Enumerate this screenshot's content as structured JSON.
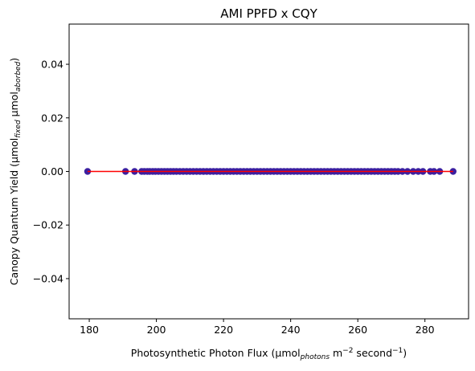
{
  "chart_data": {
    "type": "scatter",
    "title": "AMI PPFD x CQY",
    "xlabel": {
      "prefix": "Photosynthetic Photon Flux (µmol",
      "sub1": "photons",
      "mid": " m",
      "sup1": "−2",
      "mid2": " second",
      "sup2": "−1",
      "suffix": ")"
    },
    "ylabel": {
      "prefix": "Canopy Quantum Yield (µmol",
      "sub1": "fixed",
      "mid": " µmol",
      "sub2": "aborbed",
      "suffix": ")"
    },
    "xlim": [
      174,
      293
    ],
    "ylim": [
      -0.055,
      0.055
    ],
    "xticks": [
      180,
      200,
      220,
      240,
      260,
      280
    ],
    "yticks": [
      0.04,
      0.02,
      0.0,
      -0.02,
      -0.04
    ],
    "ytick_labels": [
      "0.04",
      "0.02",
      "0.00",
      "−0.02",
      "−0.04"
    ],
    "grid": false,
    "series": [
      {
        "marker_color": "#3b1fa0",
        "x": [
          179.5,
          190.8,
          193.5,
          195.6,
          196.4,
          197.3,
          198.0,
          198.9,
          199.7,
          200.6,
          201.5,
          202.4,
          203.3,
          204.2,
          205.1,
          206.0,
          207.0,
          208.0,
          209.0,
          210.0,
          211.0,
          212.0,
          213.0,
          214.0,
          215.0,
          216.0,
          217.0,
          218.0,
          219.0,
          220.0,
          221.0,
          222.0,
          223.0,
          224.0,
          225.0,
          226.0,
          227.0,
          228.0,
          229.0,
          230.0,
          231.0,
          232.0,
          233.0,
          234.0,
          235.0,
          236.0,
          237.0,
          238.0,
          239.0,
          240.0,
          241.0,
          242.0,
          243.0,
          244.0,
          245.0,
          246.0,
          247.0,
          248.0,
          249.0,
          250.0,
          251.0,
          252.0,
          253.0,
          254.0,
          255.0,
          256.0,
          257.0,
          258.0,
          259.0,
          260.0,
          261.0,
          262.0,
          263.0,
          264.0,
          265.0,
          266.0,
          267.0,
          268.0,
          269.0,
          270.0,
          271.0,
          272.0,
          273.3,
          274.8,
          276.5,
          278.0,
          279.4,
          281.6,
          282.7,
          284.4,
          288.4
        ],
        "y": [
          0,
          0,
          0,
          0,
          0,
          0,
          0,
          0,
          0,
          0,
          0,
          0,
          0,
          0,
          0,
          0,
          0,
          0,
          0,
          0,
          0,
          0,
          0,
          0,
          0,
          0,
          0,
          0,
          0,
          0,
          0,
          0,
          0,
          0,
          0,
          0,
          0,
          0,
          0,
          0,
          0,
          0,
          0,
          0,
          0,
          0,
          0,
          0,
          0,
          0,
          0,
          0,
          0,
          0,
          0,
          0,
          0,
          0,
          0,
          0,
          0,
          0,
          0,
          0,
          0,
          0,
          0,
          0,
          0,
          0,
          0,
          0,
          0,
          0,
          0,
          0,
          0,
          0,
          0,
          0,
          0,
          0,
          0,
          0,
          0,
          0,
          0,
          0,
          0,
          0,
          0
        ]
      }
    ],
    "fit_line": {
      "color": "#ff0000",
      "x": [
        179.5,
        288.4
      ],
      "y": [
        0,
        0
      ]
    }
  }
}
